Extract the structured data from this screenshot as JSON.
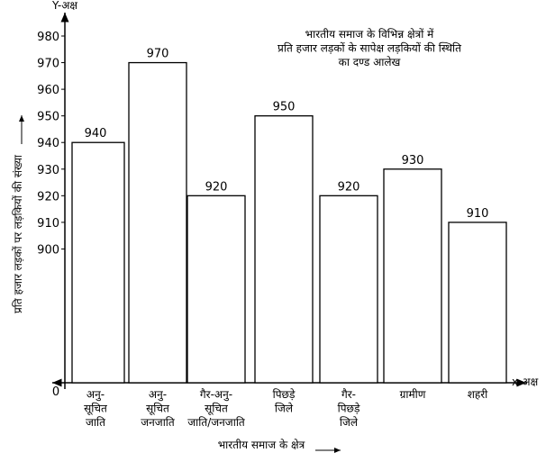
{
  "chart_data": {
    "type": "bar",
    "title": "भारतीय समाज के विभिन्न क्षेत्रों में\nप्रति हजार लड़कों के सापेक्ष लड़कियों की स्थिति\nका दण्ड आलेख",
    "y_axis_name": "Y-अक्ष",
    "x_axis_name": "x-अक्ष",
    "ylabel": "प्रति हजार लड़कों पर लड़कियों की संख्या",
    "xlabel": "भारतीय समाज के क्षेत्र",
    "categories": [
      "अनु-\nसूचित\nजाति",
      "अनु-\nसूचित\nजनजाति",
      "गैर-अनु-\nसूचित\nजाति/जनजाति",
      "पिछड़े\nजिले",
      "गैर-\nपिछड़े\nजिले",
      "ग्रामीण",
      "शहरी"
    ],
    "values": [
      940,
      970,
      920,
      950,
      920,
      930,
      910
    ],
    "color": "#ffffff",
    "ylim": [
      0,
      980
    ],
    "axis_break": [
      0,
      890
    ],
    "yticks": [
      0,
      900,
      910,
      920,
      930,
      940,
      950,
      960,
      970,
      980
    ]
  }
}
